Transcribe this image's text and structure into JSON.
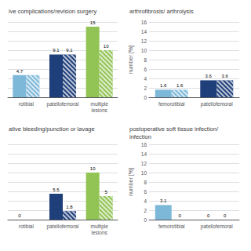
{
  "chart_data": [
    {
      "type": "bar",
      "title": "ive complications/revision surgery",
      "categories": [
        "rotibial",
        "patellofemoral",
        "multiple\nlesions"
      ],
      "series": [
        {
          "values": [
            4.7,
            9.1,
            15
          ],
          "colors": [
            "#7eb8d9",
            "#1f3f7a",
            "#92c455"
          ],
          "value_labels": [
            "4.7",
            "9.1",
            "15"
          ]
        },
        {
          "values": [
            4.7,
            9.1,
            10
          ],
          "colors": [
            "#7eb8d9",
            "#1f3f7a",
            "#92c455"
          ],
          "value_labels": [
            null,
            "9.1",
            "10"
          ]
        }
      ],
      "ylim": [
        0,
        16
      ],
      "yticks": [
        0,
        2,
        4,
        6,
        8,
        10,
        12,
        14,
        16
      ],
      "grid": true,
      "data_labels": true,
      "tick_labels": "x"
    },
    {
      "type": "bar",
      "title": "arthrofibrosis/ arthrolysis",
      "categories": [
        "femorotibial",
        "patellofemoral"
      ],
      "series": [
        {
          "values": [
            1.6,
            3.6
          ],
          "colors": [
            "#7eb8d9",
            "#1f3f7a"
          ],
          "value_labels": [
            "1.6",
            "3.6"
          ]
        },
        {
          "values": [
            1.6,
            3.6
          ],
          "colors": [
            "#7eb8d9",
            "#1f3f7a"
          ],
          "value_labels": [
            "1.6",
            "3.6"
          ]
        }
      ],
      "ylabel": "number [%]",
      "ylim": [
        0,
        16
      ],
      "yticks": [
        0,
        2,
        4,
        6,
        8,
        10,
        12,
        14,
        16
      ],
      "grid": true,
      "data_labels": true
    },
    {
      "type": "bar",
      "title": "ative bleeding/punction or lavage",
      "categories": [
        "rotibial",
        "patellofemoral",
        "multiple\nlesions"
      ],
      "series": [
        {
          "values": [
            0,
            5.5,
            10
          ],
          "colors": [
            "#7eb8d9",
            "#1f3f7a",
            "#92c455"
          ],
          "value_labels": [
            "0",
            "5.5",
            "10"
          ]
        },
        {
          "values": [
            0,
            1.8,
            5
          ],
          "colors": [
            "#7eb8d9",
            "#1f3f7a",
            "#92c455"
          ],
          "value_labels": [
            null,
            "1.8",
            "5"
          ]
        }
      ],
      "ylim": [
        0,
        16
      ],
      "yticks": [
        0,
        2,
        4,
        6,
        8,
        10,
        12,
        14,
        16
      ],
      "grid": true,
      "data_labels": true,
      "tick_labels": "x"
    },
    {
      "type": "bar",
      "title": "postoperative soft tissue infection/\ninfection",
      "categories": [
        "femorotibial",
        "patellofemoral"
      ],
      "series": [
        {
          "values": [
            3.1,
            0
          ],
          "colors": [
            "#7eb8d9",
            "#1f3f7a"
          ],
          "value_labels": [
            "3.1",
            "0"
          ]
        },
        {
          "values": [
            0,
            0
          ],
          "colors": [
            "#7eb8d9",
            "#1f3f7a"
          ],
          "value_labels": [
            "0",
            "0"
          ]
        }
      ],
      "ylabel": "number [%]",
      "ylim": [
        0,
        16
      ],
      "yticks": [
        0,
        2,
        4,
        6,
        8,
        10,
        12,
        14,
        16
      ],
      "grid": true,
      "data_labels": true
    }
  ]
}
